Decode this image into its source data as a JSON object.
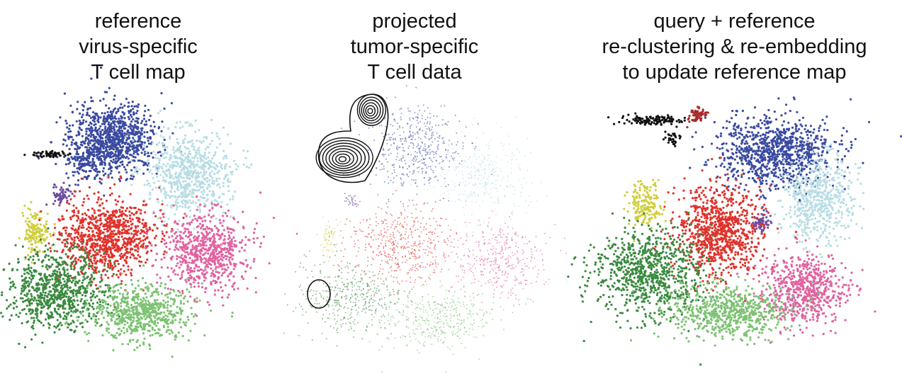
{
  "panels": [
    {
      "title_lines": [
        "reference",
        "virus-specific",
        "T cell map"
      ],
      "style": "dense",
      "clusters": [
        {
          "name": "blue-cluster",
          "color": "#3a4aa0"
        },
        {
          "name": "lightblue-cluster",
          "color": "#b8dde4"
        },
        {
          "name": "purple-cluster",
          "color": "#6d4ba0"
        },
        {
          "name": "yellow-cluster",
          "color": "#cfcf3f"
        },
        {
          "name": "red-cluster",
          "color": "#e0322b"
        },
        {
          "name": "pink-cluster",
          "color": "#e063a0"
        },
        {
          "name": "darkgreen-cluster",
          "color": "#3a8a3f"
        },
        {
          "name": "lightgreen-cluster",
          "color": "#7cc272"
        },
        {
          "name": "black-cluster",
          "color": "#111111"
        }
      ]
    },
    {
      "title_lines": [
        "projected",
        "tumor-specific",
        "T cell data"
      ],
      "style": "sparse",
      "clusters": [
        {
          "name": "blue-cluster",
          "color": "#3a4aa0"
        },
        {
          "name": "lightblue-cluster",
          "color": "#b8dde4"
        },
        {
          "name": "purple-cluster",
          "color": "#6d4ba0"
        },
        {
          "name": "yellow-cluster",
          "color": "#cfcf3f"
        },
        {
          "name": "red-cluster",
          "color": "#e0322b"
        },
        {
          "name": "pink-cluster",
          "color": "#e063a0"
        },
        {
          "name": "darkgreen-cluster",
          "color": "#3a8a3f"
        },
        {
          "name": "lightgreen-cluster",
          "color": "#7cc272"
        }
      ],
      "contours": true
    },
    {
      "title_lines": [
        "query + reference",
        "re-clustering & re-embedding",
        "to update reference map"
      ],
      "style": "dense",
      "clusters": [
        {
          "name": "blue-cluster",
          "color": "#3a4aa0"
        },
        {
          "name": "lightblue-cluster",
          "color": "#b8dde4"
        },
        {
          "name": "purple-cluster",
          "color": "#6d4ba0"
        },
        {
          "name": "yellow-cluster",
          "color": "#cfcf3f"
        },
        {
          "name": "red-cluster",
          "color": "#e0322b"
        },
        {
          "name": "pink-cluster",
          "color": "#e063a0"
        },
        {
          "name": "darkgreen-cluster",
          "color": "#3a8a3f"
        },
        {
          "name": "lightgreen-cluster",
          "color": "#7cc272"
        },
        {
          "name": "black-cluster",
          "color": "#111111"
        },
        {
          "name": "darkred-cluster",
          "color": "#a82a2a"
        }
      ]
    }
  ]
}
